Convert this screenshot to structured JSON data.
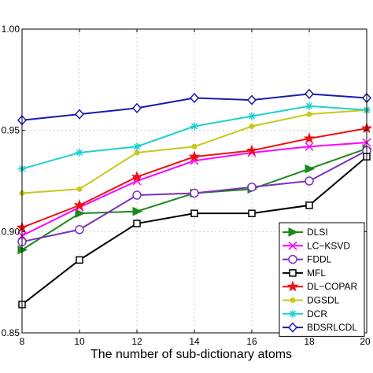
{
  "chart_data": {
    "type": "line",
    "xlabel": "The number of sub-dictionary atoms",
    "ylabel": "",
    "x": [
      8,
      10,
      12,
      14,
      16,
      18,
      20
    ],
    "xlim": [
      8,
      20
    ],
    "ylim": [
      0.85,
      1.0
    ],
    "xticks": [
      "8",
      "10",
      "12",
      "14",
      "16",
      "18",
      "20"
    ],
    "yticks": [
      "0.85",
      "0.90",
      "0.95",
      "1.00"
    ],
    "grid": true,
    "legend_position": "bottom-right",
    "series": [
      {
        "name": "DLSI",
        "color": "#1a8a1a",
        "marker": "triangle-right",
        "values": [
          0.891,
          0.909,
          0.91,
          0.919,
          0.921,
          0.931,
          0.941
        ]
      },
      {
        "name": "LC−KSVD",
        "color": "#ff00ff",
        "marker": "x",
        "values": [
          0.898,
          0.912,
          0.925,
          0.935,
          0.939,
          0.942,
          0.944
        ]
      },
      {
        "name": "FDDL",
        "color": "#7b2fbe",
        "marker": "circle",
        "values": [
          0.895,
          0.901,
          0.918,
          0.919,
          0.922,
          0.925,
          0.94
        ]
      },
      {
        "name": "MFL",
        "color": "#000000",
        "marker": "square",
        "values": [
          0.864,
          0.886,
          0.904,
          0.909,
          0.909,
          0.913,
          0.937
        ]
      },
      {
        "name": "DL−COPAR",
        "color": "#ee1111",
        "marker": "star",
        "values": [
          0.902,
          0.913,
          0.927,
          0.937,
          0.94,
          0.946,
          0.951
        ]
      },
      {
        "name": "DGSDL",
        "color": "#c8c81e",
        "marker": "dot",
        "values": [
          0.919,
          0.921,
          0.939,
          0.942,
          0.952,
          0.958,
          0.96
        ]
      },
      {
        "name": "DCR",
        "color": "#1fcfcf",
        "marker": "asterisk",
        "values": [
          0.931,
          0.939,
          0.942,
          0.952,
          0.957,
          0.962,
          0.96
        ]
      },
      {
        "name": "BDSRLCDL",
        "color": "#1a1aaa",
        "marker": "diamond",
        "values": [
          0.955,
          0.958,
          0.961,
          0.966,
          0.965,
          0.968,
          0.966
        ]
      }
    ]
  }
}
